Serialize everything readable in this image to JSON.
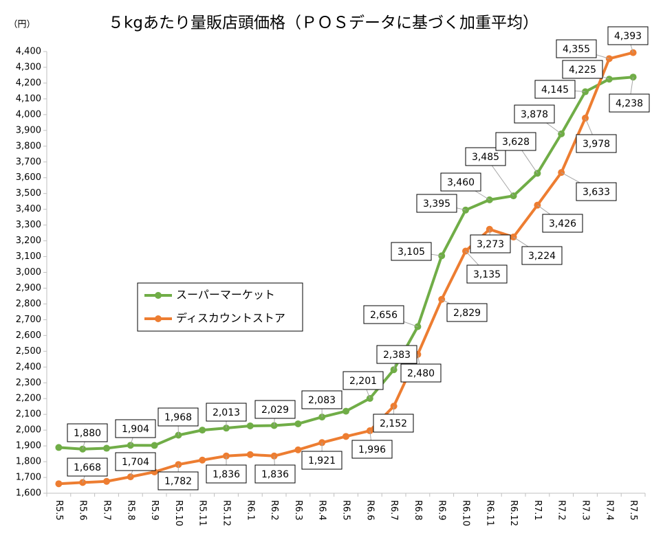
{
  "chart_data": {
    "type": "line",
    "title": "５kgあたり量販店頭価格（ＰＯＳデータに基づく加重平均）",
    "y_label": "（円）",
    "categories": [
      "R5.5",
      "R5.6",
      "R5.7",
      "R5.8",
      "R5.9",
      "R5.10",
      "R5.11",
      "R5.12",
      "R6.1",
      "R6.2",
      "R6.3",
      "R6.4",
      "R6.5",
      "R6.6",
      "R6.7",
      "R6.8",
      "R6.9",
      "R6.10",
      "R6.11",
      "R6.12",
      "R7.1",
      "R7.2",
      "R7.3",
      "R7.4",
      "R7.5"
    ],
    "series": [
      {
        "name": "スーパーマーケット",
        "color": "#70ad47",
        "values": [
          1890,
          1880,
          1885,
          1904,
          1903,
          1968,
          2000,
          2013,
          2027,
          2029,
          2040,
          2083,
          2120,
          2201,
          2383,
          2656,
          3105,
          3395,
          3460,
          3485,
          3628,
          3878,
          4145,
          4225,
          4238
        ],
        "value_labels": [
          null,
          "1,880",
          null,
          "1,904",
          null,
          "1,968",
          null,
          "2,013",
          null,
          "2,029",
          null,
          "2,083",
          null,
          "2,201",
          "2,383",
          "2,656",
          "3,105",
          "3,395",
          "3,460",
          "3,485",
          "3,628",
          "3,878",
          "4,145",
          "4,225",
          "4,238"
        ]
      },
      {
        "name": "ディスカウントストア",
        "color": "#ed7d31",
        "values": [
          1660,
          1668,
          1675,
          1704,
          1735,
          1782,
          1810,
          1836,
          1845,
          1836,
          1875,
          1921,
          1960,
          1996,
          2152,
          2480,
          2829,
          3135,
          3273,
          3224,
          3426,
          3633,
          3978,
          4355,
          4393
        ],
        "value_labels": [
          null,
          "1,668",
          null,
          "1,704",
          null,
          "1,782",
          null,
          "1,836",
          null,
          "1,836",
          null,
          "1,921",
          null,
          "1,996",
          "2,152",
          "2,480",
          "2,829",
          "3,135",
          "3,273",
          "3,224",
          "3,426",
          "3,633",
          "3,978",
          "4,355",
          "4,393"
        ]
      }
    ],
    "ylim": [
      1600,
      4400
    ],
    "yticks": [
      {
        "value": 1600,
        "label": "1,600"
      },
      {
        "value": 1700,
        "label": "1,700"
      },
      {
        "value": 1800,
        "label": "1,800"
      },
      {
        "value": 1900,
        "label": "1,900"
      },
      {
        "value": 2000,
        "label": "2,000"
      },
      {
        "value": 2100,
        "label": "2,100"
      },
      {
        "value": 2200,
        "label": "2,200"
      },
      {
        "value": 2300,
        "label": "2,300"
      },
      {
        "value": 2400,
        "label": "2,400"
      },
      {
        "value": 2500,
        "label": "2,500"
      },
      {
        "value": 2600,
        "label": "2,600"
      },
      {
        "value": 2700,
        "label": "2,700"
      },
      {
        "value": 2800,
        "label": "2,800"
      },
      {
        "value": 2900,
        "label": "2,900"
      },
      {
        "value": 3000,
        "label": "3,000"
      },
      {
        "value": 3100,
        "label": "3,100"
      },
      {
        "value": 3200,
        "label": "3,200"
      },
      {
        "value": 3300,
        "label": "3,300"
      },
      {
        "value": 3400,
        "label": "3,400"
      },
      {
        "value": 3500,
        "label": "3,500"
      },
      {
        "value": 3600,
        "label": "3,600"
      },
      {
        "value": 3700,
        "label": "3,700"
      },
      {
        "value": 3800,
        "label": "3,800"
      },
      {
        "value": 3900,
        "label": "3,900"
      },
      {
        "value": 4000,
        "label": "4,000"
      },
      {
        "value": 4100,
        "label": "4,100"
      },
      {
        "value": 4200,
        "label": "4,200"
      },
      {
        "value": 4300,
        "label": "4,300"
      },
      {
        "value": 4400,
        "label": "4,400"
      }
    ],
    "grid": false,
    "legend": "left"
  }
}
